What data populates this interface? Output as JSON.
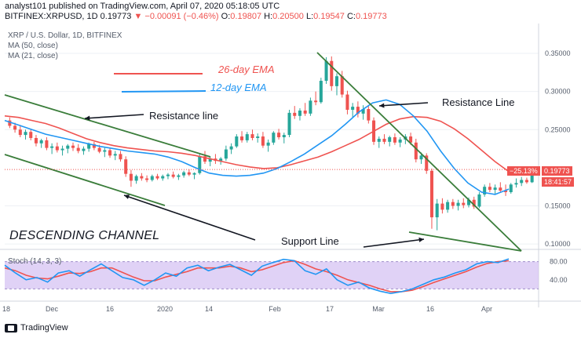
{
  "header": {
    "author": "analyst101",
    "published_text": "published on TradingView.com, April 07, 2020 05:18:05 UTC",
    "symbol": "BITFINEX:XRPUSD, 1D",
    "last_price": "0.19773",
    "change_text": "▼ −0.00091 (−0.46%)",
    "o_label": "O:",
    "o_value": "0.19807",
    "h_label": "H:",
    "h_value": "0.20500",
    "l_label": "L:",
    "l_value": "0.19547",
    "c_label": "C:",
    "c_value": "0.19773"
  },
  "legend": {
    "title": "XRP / U.S. Dollar, 1D, BITFINEX",
    "ma50": "MA (50, close)",
    "ma21": "MA (21, close)",
    "stoch": "Stoch (14, 3, 3)"
  },
  "annotations": {
    "ema26": "26-day EMA",
    "ema12": "12-day EMA",
    "resistance_left": "Resistance line",
    "resistance_right": "Resistance Line",
    "support": "Support Line",
    "channel": "DESCENDING CHANNEL"
  },
  "price_tags": {
    "pct": "−25.13%",
    "price": "0.19773",
    "countdown": "18:41:57"
  },
  "footer": {
    "brand": "TradingView"
  },
  "colors": {
    "up": "#26a69a",
    "down": "#ef5350",
    "ema26": "#ef5350",
    "ema12": "#2196f3",
    "trendline": "#3a7d3a",
    "stoch_band": "#d6c3f3",
    "stoch_k": "#2196f3",
    "stoch_d": "#ef5350"
  },
  "chart_data": {
    "type": "candlestick",
    "y_axis": {
      "ticks": [
        "0.35000",
        "0.30000",
        "0.25000",
        "0.15000",
        "0.10000"
      ],
      "ylim": [
        0.095,
        0.385
      ]
    },
    "x_axis": {
      "ticks": [
        "18",
        "Dec",
        "16",
        "2020",
        "14",
        "Feb",
        "17",
        "Mar",
        "16",
        "Apr"
      ]
    },
    "stoch_axis": {
      "ticks": [
        "80.00",
        "40.00"
      ],
      "ylim": [
        0,
        100
      ]
    },
    "candles_ohlc": [
      [
        0.262,
        0.266,
        0.252,
        0.255
      ],
      [
        0.255,
        0.259,
        0.246,
        0.25
      ],
      [
        0.25,
        0.256,
        0.24,
        0.243
      ],
      [
        0.243,
        0.25,
        0.237,
        0.247
      ],
      [
        0.247,
        0.251,
        0.236,
        0.239
      ],
      [
        0.239,
        0.243,
        0.228,
        0.232
      ],
      [
        0.232,
        0.238,
        0.226,
        0.236
      ],
      [
        0.236,
        0.24,
        0.223,
        0.226
      ],
      [
        0.226,
        0.232,
        0.218,
        0.228
      ],
      [
        0.228,
        0.233,
        0.22,
        0.223
      ],
      [
        0.223,
        0.229,
        0.216,
        0.225
      ],
      [
        0.225,
        0.231,
        0.219,
        0.229
      ],
      [
        0.229,
        0.233,
        0.222,
        0.226
      ],
      [
        0.226,
        0.231,
        0.219,
        0.222
      ],
      [
        0.222,
        0.228,
        0.217,
        0.225
      ],
      [
        0.225,
        0.233,
        0.221,
        0.231
      ],
      [
        0.231,
        0.234,
        0.223,
        0.226
      ],
      [
        0.226,
        0.23,
        0.219,
        0.221
      ],
      [
        0.221,
        0.226,
        0.214,
        0.223
      ],
      [
        0.223,
        0.226,
        0.213,
        0.216
      ],
      [
        0.216,
        0.222,
        0.21,
        0.218
      ],
      [
        0.218,
        0.222,
        0.208,
        0.211
      ],
      [
        0.211,
        0.215,
        0.188,
        0.192
      ],
      [
        0.192,
        0.197,
        0.175,
        0.183
      ],
      [
        0.183,
        0.191,
        0.179,
        0.189
      ],
      [
        0.189,
        0.193,
        0.183,
        0.186
      ],
      [
        0.186,
        0.19,
        0.181,
        0.184
      ],
      [
        0.184,
        0.191,
        0.182,
        0.189
      ],
      [
        0.189,
        0.192,
        0.184,
        0.186
      ],
      [
        0.186,
        0.191,
        0.183,
        0.189
      ],
      [
        0.189,
        0.193,
        0.185,
        0.191
      ],
      [
        0.191,
        0.195,
        0.186,
        0.188
      ],
      [
        0.188,
        0.192,
        0.184,
        0.19
      ],
      [
        0.19,
        0.196,
        0.187,
        0.194
      ],
      [
        0.194,
        0.198,
        0.189,
        0.191
      ],
      [
        0.191,
        0.194,
        0.185,
        0.193
      ],
      [
        0.193,
        0.219,
        0.191,
        0.215
      ],
      [
        0.215,
        0.222,
        0.205,
        0.208
      ],
      [
        0.208,
        0.214,
        0.202,
        0.212
      ],
      [
        0.212,
        0.218,
        0.205,
        0.209
      ],
      [
        0.209,
        0.214,
        0.204,
        0.212
      ],
      [
        0.212,
        0.229,
        0.209,
        0.224
      ],
      [
        0.224,
        0.232,
        0.218,
        0.228
      ],
      [
        0.228,
        0.244,
        0.226,
        0.241
      ],
      [
        0.241,
        0.248,
        0.233,
        0.236
      ],
      [
        0.236,
        0.247,
        0.233,
        0.244
      ],
      [
        0.244,
        0.25,
        0.236,
        0.239
      ],
      [
        0.239,
        0.245,
        0.233,
        0.241
      ],
      [
        0.241,
        0.247,
        0.226,
        0.229
      ],
      [
        0.229,
        0.237,
        0.221,
        0.233
      ],
      [
        0.233,
        0.248,
        0.23,
        0.246
      ],
      [
        0.246,
        0.251,
        0.237,
        0.24
      ],
      [
        0.24,
        0.246,
        0.232,
        0.243
      ],
      [
        0.243,
        0.276,
        0.24,
        0.272
      ],
      [
        0.272,
        0.281,
        0.264,
        0.268
      ],
      [
        0.268,
        0.278,
        0.262,
        0.275
      ],
      [
        0.275,
        0.285,
        0.268,
        0.271
      ],
      [
        0.271,
        0.292,
        0.268,
        0.288
      ],
      [
        0.288,
        0.3,
        0.282,
        0.286
      ],
      [
        0.286,
        0.318,
        0.284,
        0.314
      ],
      [
        0.314,
        0.345,
        0.31,
        0.34
      ],
      [
        0.34,
        0.346,
        0.301,
        0.307
      ],
      [
        0.307,
        0.324,
        0.295,
        0.32
      ],
      [
        0.32,
        0.327,
        0.292,
        0.296
      ],
      [
        0.296,
        0.301,
        0.27,
        0.276
      ],
      [
        0.276,
        0.285,
        0.266,
        0.28
      ],
      [
        0.28,
        0.287,
        0.266,
        0.271
      ],
      [
        0.271,
        0.282,
        0.263,
        0.277
      ],
      [
        0.277,
        0.282,
        0.258,
        0.262
      ],
      [
        0.262,
        0.266,
        0.23,
        0.234
      ],
      [
        0.234,
        0.241,
        0.226,
        0.238
      ],
      [
        0.238,
        0.244,
        0.231,
        0.234
      ],
      [
        0.234,
        0.242,
        0.228,
        0.24
      ],
      [
        0.24,
        0.245,
        0.23,
        0.233
      ],
      [
        0.233,
        0.24,
        0.227,
        0.237
      ],
      [
        0.237,
        0.244,
        0.231,
        0.241
      ],
      [
        0.241,
        0.246,
        0.23,
        0.233
      ],
      [
        0.233,
        0.238,
        0.207,
        0.211
      ],
      [
        0.211,
        0.22,
        0.205,
        0.216
      ],
      [
        0.216,
        0.219,
        0.192,
        0.196
      ],
      [
        0.196,
        0.199,
        0.12,
        0.135
      ],
      [
        0.135,
        0.159,
        0.118,
        0.153
      ],
      [
        0.153,
        0.16,
        0.14,
        0.145
      ],
      [
        0.145,
        0.158,
        0.141,
        0.155
      ],
      [
        0.155,
        0.159,
        0.146,
        0.15
      ],
      [
        0.15,
        0.158,
        0.144,
        0.154
      ],
      [
        0.154,
        0.16,
        0.147,
        0.151
      ],
      [
        0.151,
        0.161,
        0.148,
        0.158
      ],
      [
        0.158,
        0.162,
        0.146,
        0.149
      ],
      [
        0.149,
        0.168,
        0.147,
        0.165
      ],
      [
        0.165,
        0.178,
        0.162,
        0.175
      ],
      [
        0.175,
        0.18,
        0.168,
        0.171
      ],
      [
        0.171,
        0.178,
        0.166,
        0.174
      ],
      [
        0.174,
        0.181,
        0.168,
        0.17
      ],
      [
        0.17,
        0.178,
        0.163,
        0.168
      ],
      [
        0.168,
        0.18,
        0.166,
        0.178
      ],
      [
        0.178,
        0.186,
        0.174,
        0.18
      ],
      [
        0.18,
        0.188,
        0.176,
        0.184
      ],
      [
        0.184,
        0.187,
        0.179,
        0.181
      ],
      [
        0.181,
        0.2,
        0.18,
        0.198
      ]
    ],
    "ema26": [
      0.268,
      0.266,
      0.262,
      0.258,
      0.252,
      0.245,
      0.238,
      0.233,
      0.229,
      0.226,
      0.224,
      0.222,
      0.221,
      0.219,
      0.216,
      0.212,
      0.208,
      0.204,
      0.201,
      0.199,
      0.2,
      0.204,
      0.209,
      0.214,
      0.221,
      0.229,
      0.237,
      0.247,
      0.257,
      0.264,
      0.267,
      0.266,
      0.261,
      0.251,
      0.238,
      0.223,
      0.208,
      0.195
    ],
    "ema12": [
      0.262,
      0.256,
      0.25,
      0.244,
      0.24,
      0.236,
      0.232,
      0.228,
      0.225,
      0.222,
      0.22,
      0.218,
      0.214,
      0.208,
      0.2,
      0.193,
      0.19,
      0.189,
      0.19,
      0.193,
      0.199,
      0.208,
      0.218,
      0.23,
      0.242,
      0.257,
      0.273,
      0.285,
      0.289,
      0.283,
      0.268,
      0.248,
      0.222,
      0.199,
      0.18,
      0.168,
      0.165,
      0.172
    ],
    "stoch_k": [
      72,
      55,
      40,
      45,
      35,
      55,
      60,
      48,
      62,
      75,
      60,
      45,
      40,
      28,
      40,
      55,
      48,
      66,
      72,
      60,
      68,
      74,
      62,
      50,
      70,
      78,
      85,
      82,
      60,
      52,
      64,
      40,
      28,
      35,
      22,
      15,
      10,
      14,
      20,
      30,
      40,
      46,
      55,
      62,
      75,
      80,
      78,
      86
    ],
    "stoch_d": [
      66,
      60,
      50,
      44,
      42,
      48,
      55,
      54,
      58,
      66,
      66,
      56,
      46,
      38,
      38,
      46,
      52,
      58,
      66,
      66,
      66,
      70,
      66,
      58,
      62,
      70,
      78,
      82,
      74,
      64,
      58,
      50,
      40,
      34,
      28,
      20,
      14,
      14,
      17,
      25,
      34,
      42,
      50,
      58,
      68,
      76,
      80,
      82
    ],
    "stoch_band": [
      20,
      80
    ]
  }
}
